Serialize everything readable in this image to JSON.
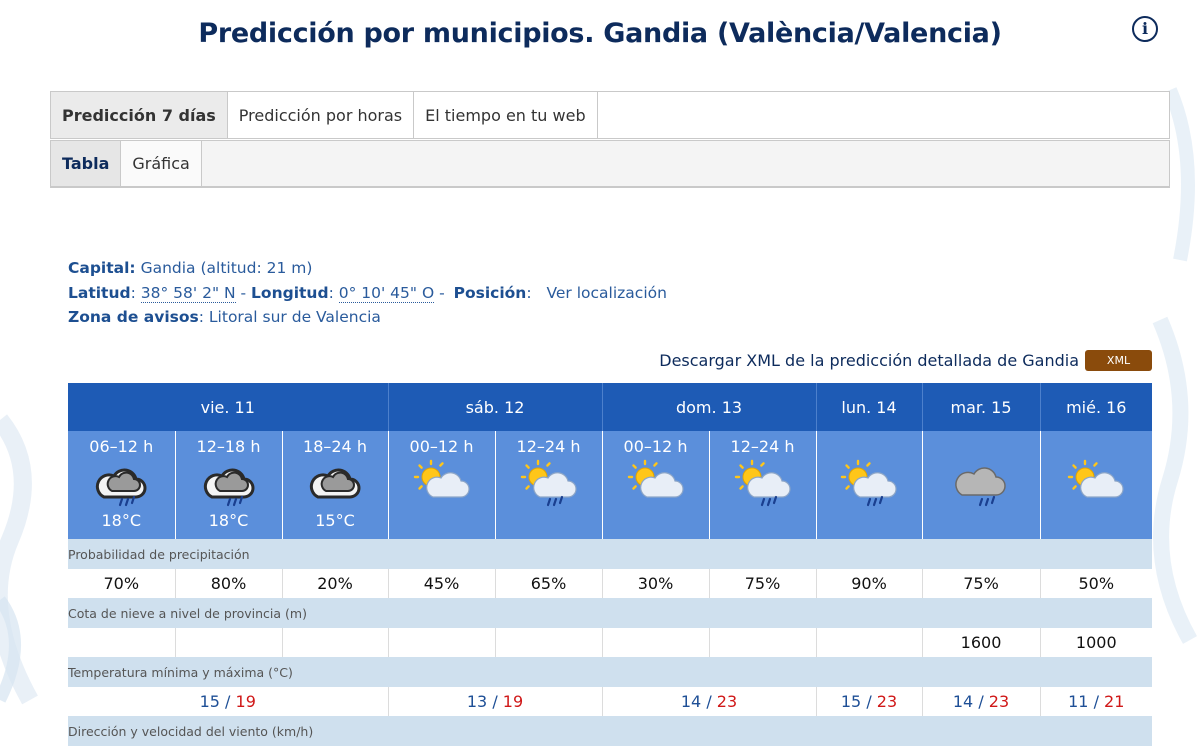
{
  "header": {
    "title": "Predicción por municipios. Gandia (València/Valencia)"
  },
  "tabs_main": [
    {
      "label": "Predicción 7 días",
      "active": true
    },
    {
      "label": "Predicción por horas",
      "active": false
    },
    {
      "label": "El tiempo en tu web",
      "active": false
    }
  ],
  "tabs_sub": [
    {
      "label": "Tabla",
      "active": true
    },
    {
      "label": "Gráfica",
      "active": false
    }
  ],
  "info": {
    "capital_label": "Capital:",
    "capital_value": "Gandia (altitud: 21 m)",
    "lat_label": "Latitud",
    "lat_value": "38° 58' 2\" N",
    "lon_label": "Longitud",
    "lon_value": "0° 10' 45\" O",
    "pos_label": "Posición",
    "pos_link": "Ver localización",
    "zona_label": "Zona de avisos",
    "zona_value": "Litoral sur de Valencia"
  },
  "xml": {
    "text": "Descargar XML de la predicción detallada de Gandia",
    "badge": "XML"
  },
  "days": [
    "vie. 11",
    "sáb. 12",
    "dom. 13",
    "lun. 14",
    "mar. 15",
    "mié. 16"
  ],
  "periods": [
    {
      "label": "06–12 h",
      "icon": "cloud-rain-icon",
      "temp": "18°C"
    },
    {
      "label": "12–18 h",
      "icon": "cloud-rain-icon",
      "temp": "18°C"
    },
    {
      "label": "18–24 h",
      "icon": "cloud-icon",
      "temp": "15°C"
    },
    {
      "label": "00–12 h",
      "icon": "sun-cloud-icon",
      "temp": ""
    },
    {
      "label": "12–24 h",
      "icon": "sun-cloud-rain-icon",
      "temp": ""
    },
    {
      "label": "00–12 h",
      "icon": "sun-cloud-icon",
      "temp": ""
    },
    {
      "label": "12–24 h",
      "icon": "sun-cloud-rain-icon",
      "temp": ""
    },
    {
      "label": "",
      "icon": "sun-cloud-rain-icon",
      "temp": ""
    },
    {
      "label": "",
      "icon": "cloud-rain-grey-icon",
      "temp": ""
    },
    {
      "label": "",
      "icon": "sun-cloud-icon",
      "temp": ""
    }
  ],
  "sections": {
    "precip": "Probabilidad de precipitación",
    "snow": "Cota de nieve a nivel de provincia (m)",
    "temp": "Temperatura mínima y máxima (°C)",
    "wind": "Dirección y velocidad del viento (km/h)"
  },
  "precip": [
    "70%",
    "80%",
    "20%",
    "45%",
    "65%",
    "30%",
    "75%",
    "90%",
    "75%",
    "50%"
  ],
  "snow": [
    "",
    "",
    "",
    "",
    "",
    "",
    "",
    "",
    "1600",
    "1000"
  ],
  "temps": [
    {
      "min": "15",
      "max": "19"
    },
    {
      "min": "13",
      "max": "19"
    },
    {
      "min": "14",
      "max": "23"
    },
    {
      "min": "15",
      "max": "23"
    },
    {
      "min": "14",
      "max": "23"
    },
    {
      "min": "11",
      "max": "21"
    }
  ],
  "temp_sep": "/",
  "colors": {
    "title": "#0d2b5c",
    "day_header": "#1e5bb5",
    "period_bg": "#5b8fdb",
    "section_bg": "#cfe0ee",
    "tmax": "#d01818",
    "xml_badge": "#8a4b0c"
  }
}
